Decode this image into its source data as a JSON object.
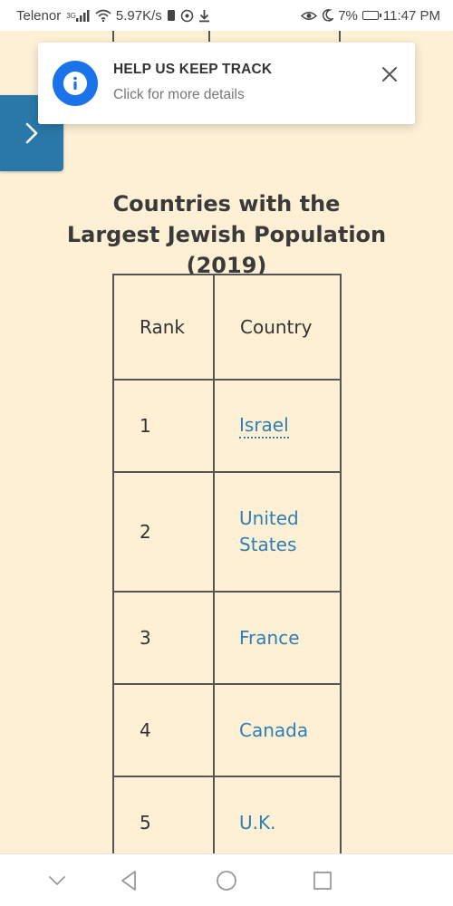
{
  "status_bar": {
    "carrier": "Telenor",
    "network_type": "3G",
    "speed": "5.97K/s",
    "battery": "7%",
    "time": "11:47 PM"
  },
  "toast": {
    "title": "HELP US KEEP TRACK",
    "subtitle": "Click for more details",
    "icon": "info-icon",
    "close_icon": "close-icon"
  },
  "sidebar_toggle": {
    "icon": "chevron-right-icon"
  },
  "page": {
    "title": "Countries with the Largest Jewish Population (2019)"
  },
  "table": {
    "headers": [
      "Rank",
      "Country"
    ],
    "rows": [
      {
        "rank": "1",
        "country": "Israel"
      },
      {
        "rank": "2",
        "country": "United States"
      },
      {
        "rank": "3",
        "country": "France"
      },
      {
        "rank": "4",
        "country": "Canada"
      },
      {
        "rank": "5",
        "country": "U.K."
      }
    ]
  },
  "nav_bar": {
    "icons": [
      "chevron-down-icon",
      "back-icon",
      "home-icon",
      "recents-icon"
    ]
  },
  "colors": {
    "background": "#fdf0d5",
    "link": "#2f7fb5",
    "sidebar_toggle": "#2a78a8",
    "info_icon": "#1a73e8"
  }
}
